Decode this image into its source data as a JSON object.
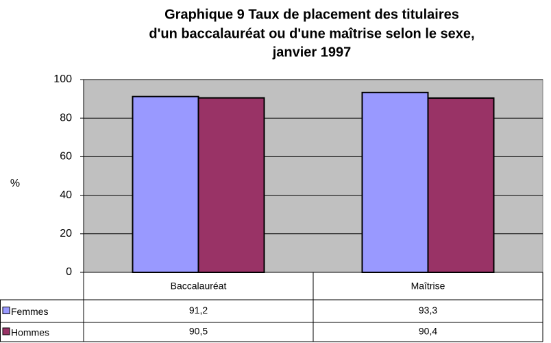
{
  "chart_data": {
    "type": "bar",
    "title": [
      "Graphique 9  Taux de placement des titulaires",
      "d'un baccalauréat ou d'une maîtrise selon le sexe,",
      "janvier 1997"
    ],
    "y_label": "%",
    "categories": [
      "Baccalauréat",
      "Maîtrise"
    ],
    "series": [
      {
        "name": "Femmes",
        "color": "#9999ff",
        "values": [
          91.2,
          93.3
        ],
        "value_labels": [
          "91,2",
          "93,3"
        ]
      },
      {
        "name": "Hommes",
        "color": "#993366",
        "values": [
          90.5,
          90.4
        ],
        "value_labels": [
          "90,5",
          "90,4"
        ]
      }
    ],
    "ylim": [
      0,
      100
    ],
    "yticks": [
      0,
      20,
      40,
      60,
      80,
      100
    ],
    "grid": true,
    "plot_background": "#c0c0c0"
  }
}
